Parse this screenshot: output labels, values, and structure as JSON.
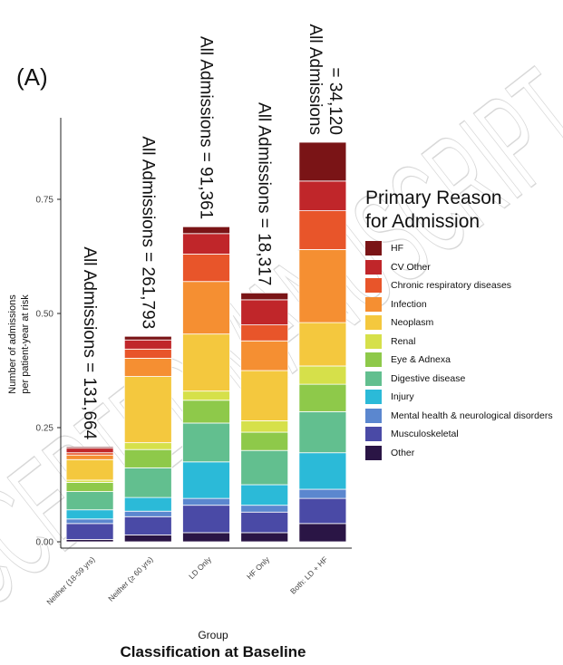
{
  "panel_label": "(A)",
  "watermark": "ACCEPTED MANUSCRIPT",
  "caption": "Classification at Baseline",
  "colors": {
    "HF": "#7a1416",
    "CV Other": "#c0262a",
    "Chronic respiratory diseases": "#e8552a",
    "Infection": "#f58f32",
    "Neoplasm": "#f4c83e",
    "Renal": "#d6e04a",
    "Eye & Adnexa": "#8ec94a",
    "Digestive disease": "#62bf8f",
    "Injury": "#2bbad8",
    "Mental health & neurological disorders": "#5b87cf",
    "Musculoskeletal": "#4a4aa6",
    "Other": "#2a1545"
  },
  "chart_data": {
    "type": "bar",
    "stacked": true,
    "title": "",
    "xlabel": "Group",
    "ylabel": "Number of admissions\nper patient-year at risk",
    "ylim": [
      0,
      0.88
    ],
    "yticks": [
      "0.00",
      "0.25",
      "0.50",
      "0.75"
    ],
    "ytick_values": [
      0,
      0.25,
      0.5,
      0.75
    ],
    "grid": false,
    "legend_title": "Primary Reason\nfor Admission",
    "legend_position": "right",
    "categories": [
      "Neither (18-59 yrs)",
      "Neither (≥ 60 yrs)",
      "LD Only",
      "HF Only",
      "Both: LD + HF"
    ],
    "bar_annotations": [
      "All Admissions = 131,664",
      "All Admissions = 261,793",
      "All Admissions = 91,361",
      "All Admissions = 18,317",
      "All Admissions\n= 34,120"
    ],
    "series": [
      {
        "name": "Other",
        "values": [
          0.005,
          0.015,
          0.02,
          0.02,
          0.04
        ]
      },
      {
        "name": "Musculoskeletal",
        "values": [
          0.035,
          0.04,
          0.06,
          0.045,
          0.055
        ]
      },
      {
        "name": "Mental health & neurological disorders",
        "values": [
          0.01,
          0.012,
          0.015,
          0.015,
          0.02
        ]
      },
      {
        "name": "Injury",
        "values": [
          0.02,
          0.03,
          0.08,
          0.045,
          0.08
        ]
      },
      {
        "name": "Digestive disease",
        "values": [
          0.04,
          0.065,
          0.085,
          0.075,
          0.09
        ]
      },
      {
        "name": "Eye & Adnexa",
        "values": [
          0.02,
          0.04,
          0.05,
          0.04,
          0.06
        ]
      },
      {
        "name": "Renal",
        "values": [
          0.005,
          0.015,
          0.02,
          0.025,
          0.04
        ]
      },
      {
        "name": "Neoplasm",
        "values": [
          0.045,
          0.145,
          0.125,
          0.11,
          0.095
        ]
      },
      {
        "name": "Infection",
        "values": [
          0.01,
          0.04,
          0.115,
          0.065,
          0.16
        ]
      },
      {
        "name": "Chronic respiratory diseases",
        "values": [
          0.005,
          0.02,
          0.06,
          0.035,
          0.085
        ]
      },
      {
        "name": "CV Other",
        "values": [
          0.01,
          0.02,
          0.045,
          0.055,
          0.065
        ]
      },
      {
        "name": "HF",
        "values": [
          0.003,
          0.008,
          0.015,
          0.015,
          0.085
        ]
      }
    ]
  }
}
